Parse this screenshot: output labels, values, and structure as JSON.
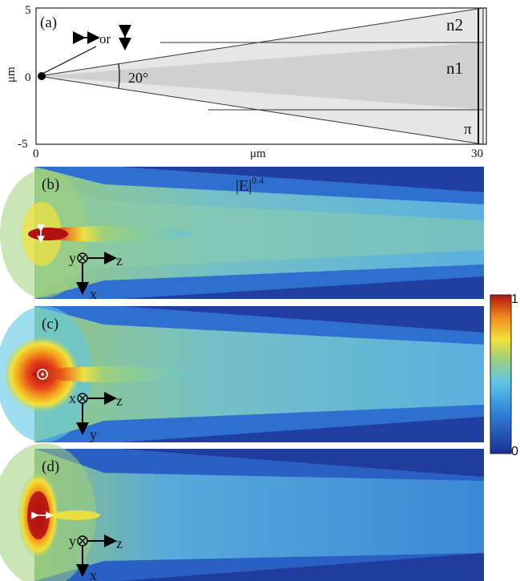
{
  "panel_a": {
    "label": "(a)",
    "y_unit": "μm",
    "x_unit": "μm",
    "y_ticks": [
      "5",
      "0",
      "-5"
    ],
    "x_ticks": [
      "0",
      "30"
    ],
    "angle_label": "20°",
    "polarization_or": "or",
    "region_n2": "n2",
    "region_n1": "n1",
    "region_pi": "π"
  },
  "field_title": {
    "base": "|E|",
    "exp": "0.4"
  },
  "panels": [
    {
      "label": "(b)",
      "axis_h": "z",
      "axis_v": "x",
      "axis_out": "y"
    },
    {
      "label": "(c)",
      "axis_h": "z",
      "axis_v": "y",
      "axis_out": "x"
    },
    {
      "label": "(d)",
      "axis_h": "z",
      "axis_v": "x",
      "axis_out": "y"
    }
  ],
  "colorbar": {
    "max": "1",
    "min": "0"
  },
  "colors": {
    "deep_blue": "#1a2f8f",
    "blue": "#2f7fd8",
    "cyan": "#5fc6e6",
    "green": "#9fd07a",
    "yellow": "#f2e23a",
    "orange": "#f08a1e",
    "red": "#b01010",
    "wedge_gray": "#d0d0d0",
    "light_gray": "#e8e8e8"
  }
}
